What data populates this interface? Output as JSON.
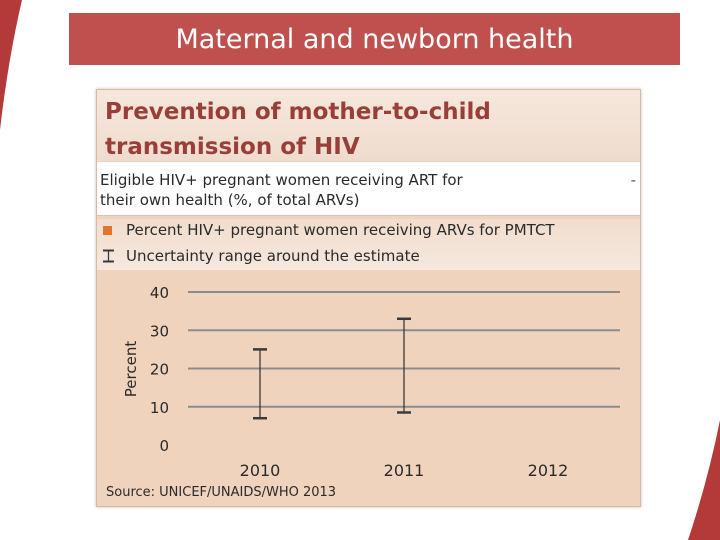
{
  "slide": {
    "title": "Maternal and newborn health"
  },
  "panel": {
    "heading_line1": "Prevention of mother-to-child",
    "heading_line2": "transmission of HIV",
    "indicator_line1": "Eligible HIV+ pregnant women receiving ART for",
    "indicator_line2": "their own health (%, of total ARVs)",
    "indicator_value": "-",
    "source": "Source: UNICEF/UNAIDS/WHO 2013"
  },
  "colors": {
    "banner": "#c0504d",
    "panel_bg": "#efd3bd",
    "heading": "#9a3e3a",
    "bar": "#e4742d",
    "gridline": "#8c8c8c",
    "error_bar": "#3a3a3a"
  },
  "chart_data": {
    "type": "bar",
    "title": "",
    "xlabel": "",
    "ylabel": "Percent",
    "ylim": [
      0,
      40
    ],
    "yticks": [
      "0",
      "10",
      "20",
      "30",
      "40"
    ],
    "categories": [
      "2010",
      "2011",
      "2012"
    ],
    "legend": [
      {
        "label": "Percent HIV+ pregnant women receiving ARVs for PMTCT",
        "kind": "bar-swatch"
      },
      {
        "label": "Uncertainty range around the estimate",
        "kind": "range-icon"
      }
    ],
    "series": [
      {
        "name": "Percent HIV+ pregnant women receiving ARVs for PMTCT",
        "values": [
          null,
          null,
          null
        ]
      }
    ],
    "uncertainty": [
      {
        "category": "2010",
        "low": 7,
        "high": 25
      },
      {
        "category": "2011",
        "low": 8.5,
        "high": 33
      },
      {
        "category": "2012",
        "low": null,
        "high": null
      }
    ]
  }
}
